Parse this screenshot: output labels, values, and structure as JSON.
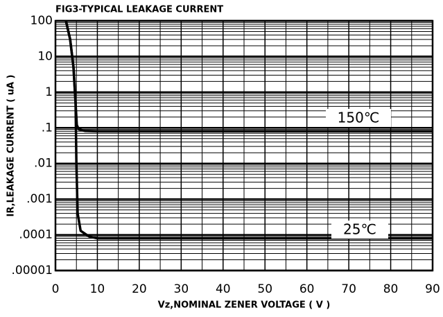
{
  "chart_data": {
    "type": "line",
    "title": "FIG3-TYPICAL LEAKAGE CURRENT",
    "x_label": "Vz,NOMINAL ZENER VOLTAGE ( V )",
    "y_label": "IR,LEAKAGE CURRENT ( uA )",
    "series": [
      {
        "name": "150℃",
        "color": "#000000",
        "x": [
          2.5,
          3.5,
          4.3,
          4.8,
          5.1,
          5.6,
          7,
          10,
          90
        ],
        "values": [
          100,
          30,
          5,
          0.5,
          0.12,
          0.09,
          0.082,
          0.08,
          0.08
        ]
      },
      {
        "name": "25℃",
        "color": "#000000",
        "x": [
          2.5,
          3.5,
          4.3,
          4.8,
          5.0,
          5.3,
          6,
          8,
          10,
          90
        ],
        "values": [
          100,
          30,
          5,
          0.5,
          0.01,
          0.0004,
          0.00013,
          9e-05,
          8e-05,
          8e-05
        ]
      }
    ],
    "xlim": [
      0,
      90
    ],
    "xticks": [
      0,
      10,
      20,
      30,
      40,
      50,
      60,
      70,
      80,
      90
    ],
    "ylim": [
      1e-05,
      100
    ],
    "yticks": [
      100,
      10,
      1,
      {
        "value": 0.1,
        "label": ".1"
      },
      {
        "value": 0.01,
        "label": ".01"
      },
      {
        "value": 0.001,
        "label": ".001"
      },
      {
        "value": 0.0001,
        "label": ".0001"
      },
      {
        "value": 1e-05,
        "label": ".00001"
      }
    ],
    "log_y": true,
    "grid": true
  }
}
